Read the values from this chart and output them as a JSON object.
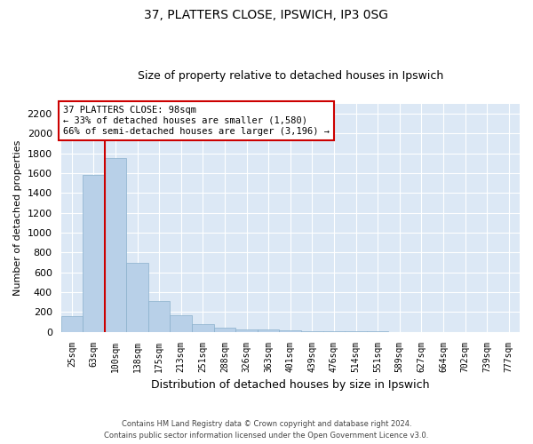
{
  "title1": "37, PLATTERS CLOSE, IPSWICH, IP3 0SG",
  "title2": "Size of property relative to detached houses in Ipswich",
  "xlabel": "Distribution of detached houses by size in Ipswich",
  "ylabel": "Number of detached properties",
  "footer1": "Contains HM Land Registry data © Crown copyright and database right 2024.",
  "footer2": "Contains public sector information licensed under the Open Government Licence v3.0.",
  "bar_color": "#b8d0e8",
  "bar_edge_color": "#8ab0cc",
  "bg_color": "#dce8f5",
  "grid_color": "#ffffff",
  "vline_color": "#cc0000",
  "annotation_box_color": "#cc0000",
  "categories": [
    "25sqm",
    "63sqm",
    "100sqm",
    "138sqm",
    "175sqm",
    "213sqm",
    "251sqm",
    "288sqm",
    "326sqm",
    "363sqm",
    "401sqm",
    "439sqm",
    "476sqm",
    "514sqm",
    "551sqm",
    "589sqm",
    "627sqm",
    "664sqm",
    "702sqm",
    "739sqm",
    "777sqm"
  ],
  "values": [
    160,
    1580,
    1750,
    700,
    310,
    165,
    80,
    40,
    25,
    20,
    15,
    10,
    10,
    3,
    2,
    1,
    1,
    0,
    0,
    0,
    0
  ],
  "ylim": [
    0,
    2300
  ],
  "yticks": [
    0,
    200,
    400,
    600,
    800,
    1000,
    1200,
    1400,
    1600,
    1800,
    2000,
    2200
  ],
  "annotation_title": "37 PLATTERS CLOSE: 98sqm",
  "annotation_line1": "← 33% of detached houses are smaller (1,580)",
  "annotation_line2": "66% of semi-detached houses are larger (3,196) →",
  "vline_x_index": 2
}
